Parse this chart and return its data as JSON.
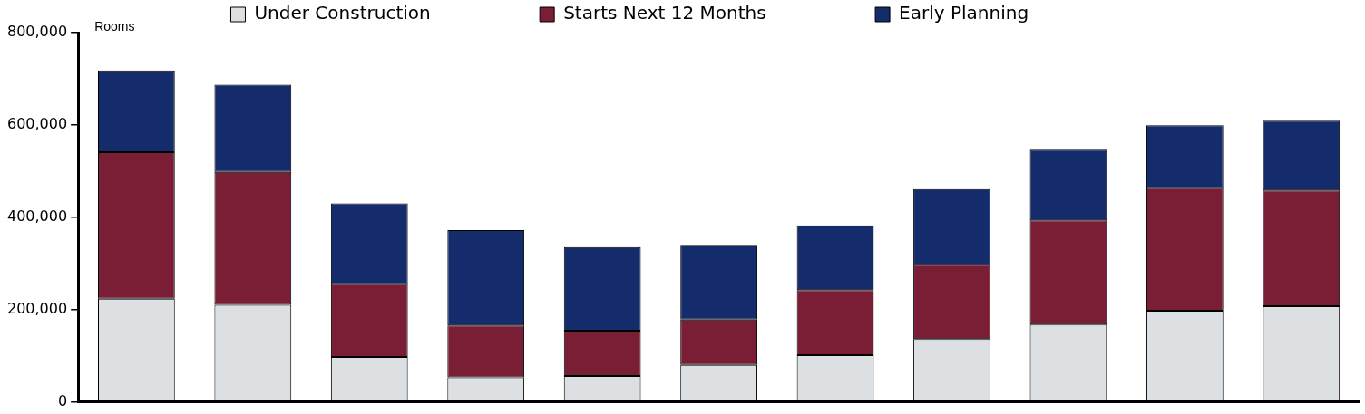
{
  "chart_data": {
    "type": "bar",
    "stacked": true,
    "categories": [
      null,
      null,
      null,
      null,
      null,
      null,
      null,
      null,
      null,
      null,
      null
    ],
    "series": [
      {
        "name": "Under Construction",
        "color": "#dce0e3",
        "values": [
          223000,
          210000,
          97000,
          53000,
          56000,
          80000,
          101000,
          136000,
          167000,
          197000,
          207000
        ]
      },
      {
        "name": "Starts Next 12 Months",
        "color": "#7a1e36",
        "values": [
          318000,
          288000,
          158000,
          112000,
          98000,
          98000,
          141000,
          161000,
          226000,
          266000,
          251000
        ]
      },
      {
        "name": "Early Planning",
        "color": "#142c6b",
        "values": [
          177000,
          189000,
          175000,
          207000,
          181000,
          162000,
          140000,
          164000,
          153000,
          136000,
          151000
        ]
      }
    ],
    "ylim": [
      0,
      800000
    ],
    "yticks": [
      0,
      {
        "value": 200000,
        "label": "200,000"
      },
      {
        "value": 400000,
        "label": "400,000"
      },
      {
        "value": 600000,
        "label": "600,000"
      },
      {
        "value": 800000,
        "label": "800,000"
      }
    ],
    "annotations": [
      "Rooms"
    ],
    "legend": "top",
    "grid": false
  }
}
